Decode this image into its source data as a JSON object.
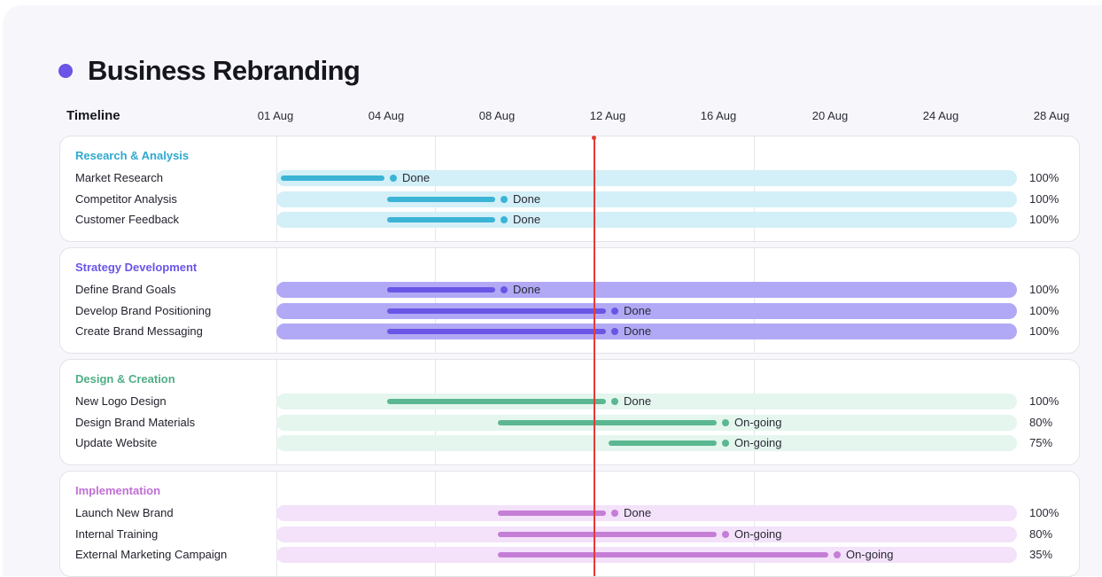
{
  "title": "Business Rebranding",
  "timeline_label": "Timeline",
  "colors": {
    "accent": "#6a55e6",
    "today_line": "#e53935"
  },
  "chart_data": {
    "type": "gantt",
    "x_ticks": [
      "01 Aug",
      "04 Aug",
      "08 Aug",
      "12 Aug",
      "16 Aug",
      "20 Aug",
      "24 Aug",
      "28 Aug"
    ],
    "groups": [
      {
        "name": "Research & Analysis",
        "color": "#3bb4d6",
        "title_color": "#2fa9cf",
        "track_color": "#d3eff7",
        "tasks": [
          {
            "name": "Market Research",
            "start": "01 Aug",
            "end": "04 Aug",
            "status": "Done",
            "progress": "100%"
          },
          {
            "name": "Competitor Analysis",
            "start": "04 Aug",
            "end": "08 Aug",
            "status": "Done",
            "progress": "100%"
          },
          {
            "name": "Customer Feedback",
            "start": "04 Aug",
            "end": "08 Aug",
            "status": "Done",
            "progress": "100%"
          }
        ]
      },
      {
        "name": "Strategy Development",
        "color": "#6a55e6",
        "title_color": "#6a55e6",
        "track_color": "#b1a9f5",
        "tasks": [
          {
            "name": "Define Brand Goals",
            "start": "04 Aug",
            "end": "08 Aug",
            "status": "Done",
            "progress": "100%"
          },
          {
            "name": "Develop Brand Positioning",
            "start": "04 Aug",
            "end": "12 Aug",
            "status": "Done",
            "progress": "100%"
          },
          {
            "name": "Create Brand Messaging",
            "start": "04 Aug",
            "end": "12 Aug",
            "status": "Done",
            "progress": "100%"
          }
        ]
      },
      {
        "name": "Design & Creation",
        "color": "#5bb791",
        "title_color": "#4fae86",
        "track_color": "#e4f6ee",
        "tasks": [
          {
            "name": "New Logo Design",
            "start": "04 Aug",
            "end": "12 Aug",
            "status": "Done",
            "progress": "100%"
          },
          {
            "name": "Design Brand Materials",
            "start": "08 Aug",
            "end": "16 Aug",
            "status": "On-going",
            "progress": "80%"
          },
          {
            "name": "Update Website",
            "start": "12 Aug",
            "end": "16 Aug",
            "status": "On-going",
            "progress": "75%"
          }
        ]
      },
      {
        "name": "Implementation",
        "color": "#c57ed6",
        "title_color": "#c06fd3",
        "track_color": "#f3e2fa",
        "tasks": [
          {
            "name": "Launch New Brand",
            "start": "08 Aug",
            "end": "12 Aug",
            "status": "Done",
            "progress": "100%"
          },
          {
            "name": "Internal Training",
            "start": "08 Aug",
            "end": "16 Aug",
            "status": "On-going",
            "progress": "80%"
          },
          {
            "name": "External Marketing Campaign",
            "start": "08 Aug",
            "end": "20 Aug",
            "status": "On-going",
            "progress": "35%"
          }
        ]
      }
    ]
  }
}
